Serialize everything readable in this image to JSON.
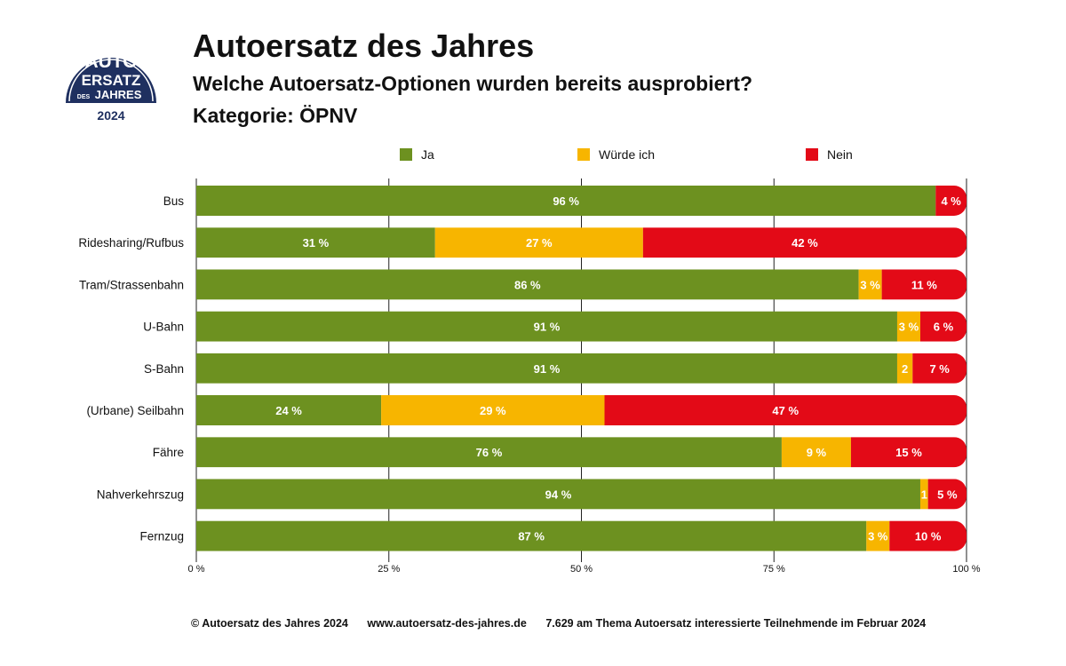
{
  "logo": {
    "line1": "AUTO",
    "line2": "ERSATZ",
    "line3_small": "DES",
    "line3": "JAHRES",
    "year": "2024",
    "color": "#1f3060"
  },
  "header": {
    "title": "Autoersatz des Jahres",
    "subtitle": "Welche Autoersatz-Optionen wurden bereits ausprobiert?",
    "category": "Kategorie: ÖPNV"
  },
  "chart_data": {
    "type": "bar",
    "orientation": "horizontal",
    "stacked": true,
    "categories": [
      "Bus",
      "Ridesharing/Rufbus",
      "Tram/Strassenbahn",
      "U-Bahn",
      "S-Bahn",
      "(Urbane) Seilbahn",
      "Fähre",
      "Nahverkehrszug",
      "Fernzug"
    ],
    "series": [
      {
        "name": "Ja",
        "color": "#6d9120",
        "values": [
          96,
          31,
          86,
          91,
          91,
          24,
          76,
          94,
          87
        ]
      },
      {
        "name": "Würde ich",
        "color": "#f7b500",
        "values": [
          0,
          27,
          3,
          3,
          2,
          29,
          9,
          1,
          3
        ]
      },
      {
        "name": "Nein",
        "color": "#e30a17",
        "values": [
          4,
          42,
          11,
          6,
          7,
          47,
          15,
          5,
          10
        ]
      }
    ],
    "data_labels": [
      [
        "96 %",
        "",
        "4 %"
      ],
      [
        "31 %",
        "27 %",
        "42 %"
      ],
      [
        "86 %",
        "3 %",
        "11 %"
      ],
      [
        "91 %",
        "3 %",
        "6 %"
      ],
      [
        "91 %",
        "2",
        "7 %"
      ],
      [
        "24 %",
        "29 %",
        "47 %"
      ],
      [
        "76 %",
        "9 %",
        "15 %"
      ],
      [
        "94 %",
        "1",
        "5 %"
      ],
      [
        "87 %",
        "3 %",
        "10 %"
      ]
    ],
    "xticks": [
      "0 %",
      "25 %",
      "50 %",
      "75 %",
      "100 %"
    ],
    "xlim": [
      0,
      100
    ],
    "grid": true,
    "legend_position": "top"
  },
  "footer": {
    "copyright": "© Autoersatz des Jahres 2024",
    "url": "www.autoersatz-des-jahres.de",
    "note": "7.629 am Thema Autoersatz interessierte Teilnehmende im Februar 2024"
  }
}
